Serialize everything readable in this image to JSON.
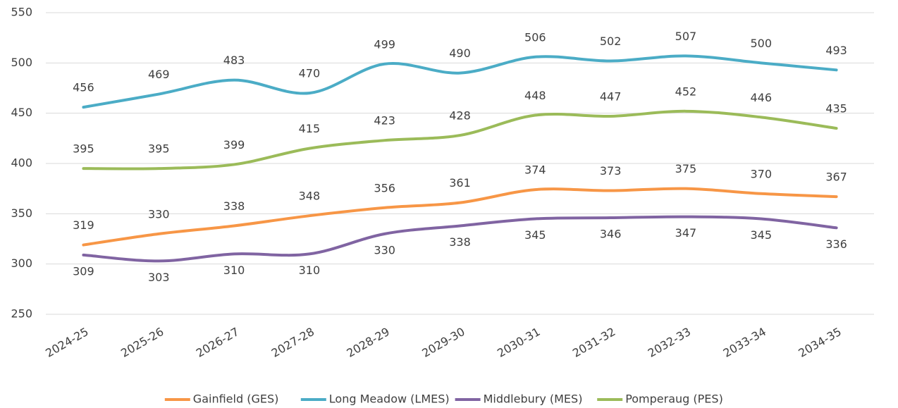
{
  "chart_data": {
    "type": "line",
    "categories": [
      "2024-25",
      "2025-26",
      "2026-27",
      "2027-28",
      "2028-29",
      "2029-30",
      "2030-31",
      "2031-32",
      "2032-33",
      "2033-34",
      "2034-35"
    ],
    "series": [
      {
        "name": "Gainfield (GES)",
        "color": "#f79646",
        "values": [
          319,
          330,
          338,
          348,
          356,
          361,
          374,
          373,
          375,
          370,
          367
        ]
      },
      {
        "name": "Long Meadow (LMES)",
        "color": "#4bacc6",
        "values": [
          456,
          469,
          483,
          470,
          499,
          490,
          506,
          502,
          507,
          500,
          493
        ]
      },
      {
        "name": "Middlebury (MES)",
        "color": "#8064a2",
        "values": [
          309,
          303,
          310,
          310,
          330,
          338,
          345,
          346,
          347,
          345,
          336
        ]
      },
      {
        "name": "Pomperaug (PES)",
        "color": "#9bbb59",
        "values": [
          395,
          395,
          399,
          415,
          423,
          428,
          448,
          447,
          452,
          446,
          435
        ]
      }
    ],
    "ylim": [
      250,
      550
    ],
    "yticks": [
      250,
      300,
      350,
      400,
      450,
      500,
      550
    ],
    "grid": true,
    "legend": "bottom"
  }
}
